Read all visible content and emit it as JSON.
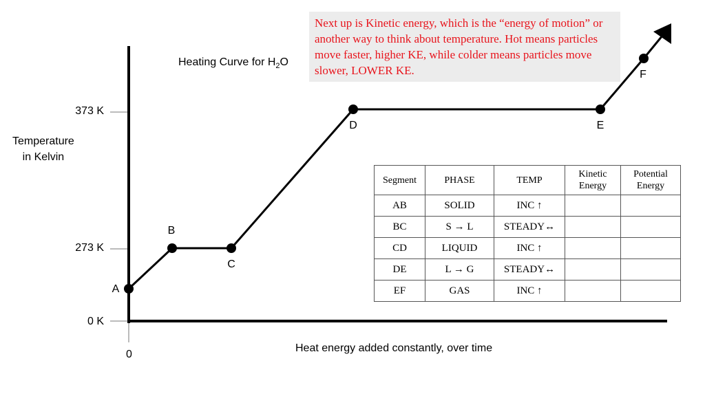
{
  "title": {
    "text": "Heating Curve for H",
    "sub": "2",
    "tail": "O"
  },
  "y_axis_label": [
    "Temperature",
    "in Kelvin"
  ],
  "y_ticks": {
    "t373": "373 K",
    "t273": "273 K",
    "t0": "0 K"
  },
  "x_zero": "0",
  "x_axis_label": "Heat energy added constantly, over time",
  "points": {
    "A": "A",
    "B": "B",
    "C": "C",
    "D": "D",
    "E": "E",
    "F": "F"
  },
  "note": "Next up is Kinetic energy, which is the “energy of motion” or another way to think about temperature. Hot means particles move faster, higher KE, while colder means particles move slower, LOWER KE.",
  "table": {
    "headers": [
      "Segment",
      "PHASE",
      "TEMP",
      "Kinetic Energy",
      "Potential Energy"
    ],
    "rows": [
      {
        "segment": "AB",
        "phase": "SOLID",
        "temp": "INC ↑",
        "ke": "",
        "pe": ""
      },
      {
        "segment": "BC",
        "phase": "S → L",
        "temp": "STEADY↔",
        "ke": "",
        "pe": ""
      },
      {
        "segment": "CD",
        "phase": "LIQUID",
        "temp": "INC ↑",
        "ke": "",
        "pe": ""
      },
      {
        "segment": "DE",
        "phase": "L → G",
        "temp": "STEADY↔",
        "ke": "",
        "pe": ""
      },
      {
        "segment": "EF",
        "phase": "GAS",
        "temp": "INC ↑",
        "ke": "",
        "pe": ""
      }
    ]
  },
  "colors": {
    "line": "#000000",
    "note_text": "#e8141c",
    "note_bg": "#ececec"
  }
}
